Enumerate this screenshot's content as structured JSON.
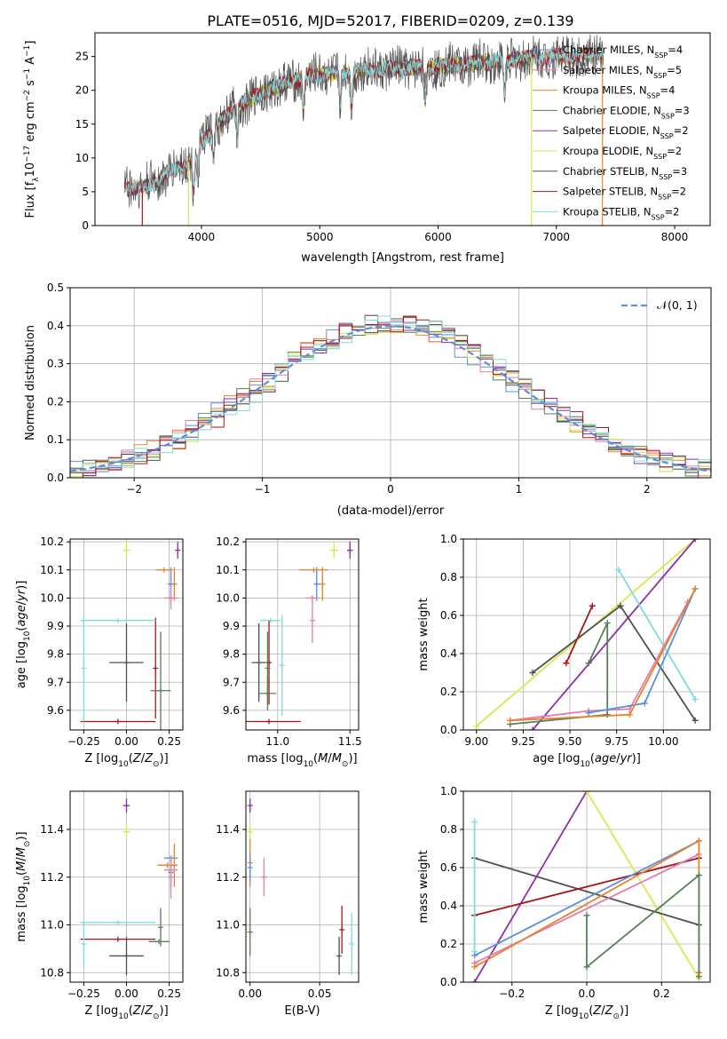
{
  "page": {
    "title": "PLATE=0516, MJD=52017, FIBERID=0209, z=0.139"
  },
  "colors": {
    "Chabrier MILES": "#5b8fd9",
    "Salpeter MILES": "#e47bb2",
    "Kroupa MILES": "#e8822c",
    "Chabrier ELODIE": "#558055",
    "Salpeter ELODIE": "#8e2fa8",
    "Kroupa ELODIE": "#d6e84f",
    "Chabrier STELIB": "#505050",
    "Salpeter STELIB": "#aa1418",
    "Kroupa STELIB": "#7fdcdc",
    "normal": "#5b8fd9"
  },
  "chart_data": [
    {
      "id": "spectrum",
      "type": "line",
      "xlabel": "wavelength [Angstrom, rest frame]",
      "ylabel": "Flux [f_λ 10^-17 erg cm^-2 s^-1 A^-1]",
      "ylabel_main": "Flux [f",
      "ylabel_sub": "λ",
      "ylabel_rest": "10",
      "ylabel_exp1": "−17",
      "ylabel_mid": " erg cm",
      "ylabel_exp2": "−2",
      "ylabel_mid2": " s",
      "ylabel_exp3": "−1",
      "ylabel_end": " A",
      "ylabel_exp4": "−1",
      "ylabel_close": "]",
      "xlim": [
        3100,
        8300
      ],
      "ylim": [
        0,
        28.5
      ],
      "xticks": [
        4000,
        5000,
        6000,
        7000,
        8000
      ],
      "yticks": [
        0,
        5,
        10,
        15,
        20,
        25
      ],
      "continuum": [
        [
          3350,
          6
        ],
        [
          3500,
          5.5
        ],
        [
          3700,
          7.5
        ],
        [
          3900,
          9.5
        ],
        [
          4000,
          12
        ],
        [
          4100,
          14.5
        ],
        [
          4300,
          17.5
        ],
        [
          4500,
          19.5
        ],
        [
          4700,
          21
        ],
        [
          4900,
          22
        ],
        [
          5100,
          22.5
        ],
        [
          5400,
          23
        ],
        [
          5800,
          23.3
        ],
        [
          6200,
          23.8
        ],
        [
          6600,
          24.5
        ],
        [
          7000,
          25
        ],
        [
          7400,
          25.2
        ]
      ],
      "absorption_lines": [
        3934,
        3969,
        4102,
        4304,
        4861,
        5175,
        5270,
        5892,
        6563
      ],
      "series": [
        {
          "name": "Chabrier MILES",
          "nssp": "4",
          "range": [
            3350,
            7400
          ]
        },
        {
          "name": "Salpeter MILES",
          "nssp": "5",
          "range": [
            3350,
            7400
          ]
        },
        {
          "name": "Kroupa MILES",
          "nssp": "4",
          "range": [
            3350,
            7400
          ]
        },
        {
          "name": "Chabrier ELODIE",
          "nssp": "3",
          "range": [
            4000,
            6800
          ]
        },
        {
          "name": "Salpeter ELODIE",
          "nssp": "2",
          "range": [
            4000,
            6800
          ]
        },
        {
          "name": "Kroupa ELODIE",
          "nssp": "2",
          "range": [
            4000,
            6800
          ]
        },
        {
          "name": "Chabrier STELIB",
          "nssp": "3",
          "range": [
            3350,
            7400
          ]
        },
        {
          "name": "Salpeter STELIB",
          "nssp": "2",
          "range": [
            3350,
            7400
          ]
        },
        {
          "name": "Kroupa STELIB",
          "nssp": "2",
          "range": [
            3350,
            7400
          ]
        }
      ],
      "drop_lines": [
        {
          "series": "Salpeter STELIB",
          "x": 3500
        },
        {
          "series": "Kroupa ELODIE",
          "x": 3890
        },
        {
          "series": "Kroupa ELODIE",
          "x": 6790
        },
        {
          "series": "Kroupa MILES",
          "x": 7390
        }
      ],
      "legend_position": "upper right"
    },
    {
      "id": "residuals",
      "type": "line",
      "xlabel": "(data-model)/error",
      "ylabel": "Normed distribution",
      "xlim": [
        -2.5,
        2.5
      ],
      "ylim": [
        0,
        0.5
      ],
      "xticks": [
        -2,
        -1,
        0,
        1,
        2
      ],
      "yticks": [
        0.0,
        0.1,
        0.2,
        0.3,
        0.4,
        0.5
      ],
      "grid": true,
      "histogram_step": 0.1,
      "legend": "𝒩(0, 1)",
      "legend_position": "upper right"
    },
    {
      "id": "age-Z",
      "type": "scatter",
      "xlabel": "Z [log10(Z/Z⊙)]",
      "ylabel": "age [log10(age/yr)]",
      "xlim": [
        -0.33,
        0.33
      ],
      "ylim": [
        9.53,
        10.21
      ],
      "xticks": [
        -0.25,
        0.0,
        0.25
      ],
      "yticks": [
        9.6,
        9.7,
        9.8,
        9.9,
        10.0,
        10.1,
        10.2
      ],
      "grid": true,
      "points": [
        {
          "series": "Chabrier STELIB",
          "x": 0.0,
          "xerr": 0.1,
          "y": 9.77,
          "yerr": 0.14
        },
        {
          "series": "Salpeter STELIB",
          "x": -0.05,
          "xerr": 0.22,
          "y": 9.56,
          "yerr": 0.0
        },
        {
          "series": "Salpeter STELIB",
          "x": 0.17,
          "xerr": 0.0,
          "y": 9.75,
          "yerr": 0.18
        },
        {
          "series": "Kroupa STELIB",
          "x": -0.25,
          "xerr": 0.0,
          "y": 9.75,
          "yerr": 0.19
        },
        {
          "series": "Kroupa STELIB",
          "x": -0.05,
          "xerr": 0.22,
          "y": 9.92,
          "yerr": 0.0
        },
        {
          "series": "Chabrier ELODIE",
          "x": 0.2,
          "xerr": 0.06,
          "y": 9.67,
          "yerr": 0.21
        },
        {
          "series": "Kroupa ELODIE",
          "x": 0.0,
          "xerr": 0.02,
          "y": 10.17,
          "yerr": 0.03
        },
        {
          "series": "Salpeter ELODIE",
          "x": 0.3,
          "xerr": 0.0,
          "y": 10.17,
          "yerr": 0.03
        },
        {
          "series": "Chabrier MILES",
          "x": 0.26,
          "xerr": 0.02,
          "y": 10.05,
          "yerr": 0.06
        },
        {
          "series": "Kroupa MILES",
          "x": 0.22,
          "xerr": 0.05,
          "y": 10.1,
          "yerr": 0.0
        },
        {
          "series": "Kroupa MILES",
          "x": 0.28,
          "xerr": 0.0,
          "y": 10.05,
          "yerr": 0.06
        },
        {
          "series": "Salpeter MILES",
          "x": 0.26,
          "xerr": 0.04,
          "y": 10.0,
          "yerr": 0.04
        }
      ]
    },
    {
      "id": "age-mass",
      "type": "scatter",
      "xlabel": "mass [log10(M/M⊙)]",
      "ylabel": "",
      "xlim": [
        10.78,
        11.56
      ],
      "ylim": [
        9.53,
        10.21
      ],
      "xticks": [
        11.0,
        11.5
      ],
      "yticks": [
        9.6,
        9.7,
        9.8,
        9.9,
        10.0,
        10.1,
        10.2
      ],
      "grid": true,
      "points": [
        {
          "series": "Chabrier STELIB",
          "x": 10.87,
          "xerr": 0.05,
          "y": 9.77,
          "yerr": 0.14
        },
        {
          "series": "Salpeter STELIB",
          "x": 10.94,
          "xerr": 0.22,
          "y": 9.56,
          "yerr": 0.0
        },
        {
          "series": "Salpeter STELIB",
          "x": 10.94,
          "xerr": 0.0,
          "y": 9.77,
          "yerr": 0.15
        },
        {
          "series": "Kroupa STELIB",
          "x": 10.95,
          "xerr": 0.07,
          "y": 9.92,
          "yerr": 0.0
        },
        {
          "series": "Kroupa STELIB",
          "x": 11.03,
          "xerr": 0.0,
          "y": 9.76,
          "yerr": 0.18
        },
        {
          "series": "Chabrier ELODIE",
          "x": 10.93,
          "xerr": 0.06,
          "y": 9.66,
          "yerr": 0.06
        },
        {
          "series": "Chabrier ELODIE",
          "x": 10.93,
          "xerr": 0.0,
          "y": 9.75,
          "yerr": 0.13
        },
        {
          "series": "Kroupa ELODIE",
          "x": 11.39,
          "xerr": 0.03,
          "y": 10.17,
          "yerr": 0.03
        },
        {
          "series": "Salpeter ELODIE",
          "x": 11.5,
          "xerr": 0.02,
          "y": 10.17,
          "yerr": 0.03
        },
        {
          "series": "Chabrier MILES",
          "x": 11.27,
          "xerr": 0.02,
          "y": 10.05,
          "yerr": 0.06
        },
        {
          "series": "Kroupa MILES",
          "x": 11.25,
          "xerr": 0.1,
          "y": 10.1,
          "yerr": 0.0
        },
        {
          "series": "Kroupa MILES",
          "x": 11.31,
          "xerr": 0.0,
          "y": 10.05,
          "yerr": 0.06
        },
        {
          "series": "Salpeter MILES",
          "x": 11.24,
          "xerr": 0.05,
          "y": 10.0,
          "yerr": 0.0
        },
        {
          "series": "Salpeter MILES",
          "x": 11.24,
          "xerr": 0.0,
          "y": 9.92,
          "yerr": 0.08
        }
      ]
    },
    {
      "id": "mass-weight-age",
      "type": "line",
      "xlabel": "age [log10(age/yr)]",
      "ylabel": "mass weight",
      "xlim": [
        8.93,
        10.25
      ],
      "ylim": [
        0,
        1
      ],
      "xticks": [
        9.0,
        9.25,
        9.5,
        9.75,
        10.0
      ],
      "yticks": [
        0.0,
        0.2,
        0.4,
        0.6,
        0.8,
        1.0
      ],
      "grid": true,
      "series": [
        {
          "name": "Kroupa ELODIE",
          "points": [
            [
              9.0,
              0.02
            ],
            [
              10.17,
              1.0
            ]
          ]
        },
        {
          "name": "Salpeter ELODIE",
          "points": [
            [
              9.3,
              0.0
            ],
            [
              10.17,
              1.0
            ]
          ]
        },
        {
          "name": "Salpeter STELIB",
          "points": [
            [
              9.48,
              0.35
            ],
            [
              9.62,
              0.65
            ]
          ]
        },
        {
          "name": "Chabrier STELIB",
          "points": [
            [
              9.3,
              0.3
            ],
            [
              9.77,
              0.65
            ],
            [
              10.17,
              0.05
            ]
          ]
        },
        {
          "name": "Chabrier ELODIE",
          "points": [
            [
              9.18,
              0.03
            ],
            [
              9.7,
              0.08
            ],
            [
              9.7,
              0.56
            ],
            [
              9.6,
              0.35
            ]
          ]
        },
        {
          "name": "Kroupa STELIB",
          "points": [
            [
              9.76,
              0.84
            ],
            [
              10.17,
              0.16
            ]
          ]
        },
        {
          "name": "Salpeter MILES",
          "points": [
            [
              9.18,
              0.05
            ],
            [
              9.6,
              0.1
            ],
            [
              9.82,
              0.11
            ],
            [
              10.13,
              0.67
            ]
          ]
        },
        {
          "name": "Chabrier MILES",
          "points": [
            [
              9.6,
              0.09
            ],
            [
              9.9,
              0.14
            ],
            [
              10.17,
              0.74
            ]
          ]
        },
        {
          "name": "Kroupa MILES",
          "points": [
            [
              9.18,
              0.05
            ],
            [
              9.82,
              0.08
            ],
            [
              10.17,
              0.74
            ]
          ]
        }
      ]
    },
    {
      "id": "mass-Z",
      "type": "scatter",
      "xlabel": "Z [log10(Z/Z⊙)]",
      "ylabel": "mass [log10(M/M⊙)]",
      "xlim": [
        -0.33,
        0.33
      ],
      "ylim": [
        10.76,
        11.56
      ],
      "xticks": [
        -0.25,
        0.0,
        0.25
      ],
      "yticks": [
        10.8,
        11.0,
        11.2,
        11.4
      ],
      "grid": true,
      "points": [
        {
          "series": "Chabrier STELIB",
          "x": 0.0,
          "xerr": 0.1,
          "y": 10.87,
          "yerr": 0.08
        },
        {
          "series": "Salpeter STELIB",
          "x": -0.05,
          "xerr": 0.22,
          "y": 10.94,
          "yerr": 0.0
        },
        {
          "series": "Kroupa STELIB",
          "x": -0.25,
          "xerr": 0.0,
          "y": 10.92,
          "yerr": 0.1
        },
        {
          "series": "Kroupa STELIB",
          "x": -0.05,
          "xerr": 0.22,
          "y": 11.01,
          "yerr": 0.0
        },
        {
          "series": "Chabrier ELODIE",
          "x": 0.19,
          "xerr": 0.06,
          "y": 10.93,
          "yerr": 0.0
        },
        {
          "series": "Chabrier ELODIE",
          "x": 0.2,
          "xerr": 0.0,
          "y": 10.99,
          "yerr": 0.08
        },
        {
          "series": "Kroupa ELODIE",
          "x": 0.0,
          "xerr": 0.02,
          "y": 11.39,
          "yerr": 0.03
        },
        {
          "series": "Salpeter ELODIE",
          "x": 0.0,
          "xerr": 0.02,
          "y": 11.5,
          "yerr": 0.03
        },
        {
          "series": "Chabrier MILES",
          "x": 0.26,
          "xerr": 0.04,
          "y": 11.28,
          "yerr": 0.0
        },
        {
          "series": "Chabrier MILES",
          "x": 0.26,
          "xerr": 0.0,
          "y": 11.22,
          "yerr": 0.06
        },
        {
          "series": "Kroupa MILES",
          "x": 0.24,
          "xerr": 0.06,
          "y": 11.25,
          "yerr": 0.0
        },
        {
          "series": "Kroupa MILES",
          "x": 0.28,
          "xerr": 0.0,
          "y": 11.25,
          "yerr": 0.09
        },
        {
          "series": "Salpeter MILES",
          "x": 0.26,
          "xerr": 0.04,
          "y": 11.23,
          "yerr": 0.0
        },
        {
          "series": "Salpeter MILES",
          "x": 0.26,
          "xerr": 0.0,
          "y": 11.2,
          "yerr": 0.09
        }
      ]
    },
    {
      "id": "mass-ebv",
      "type": "scatter",
      "xlabel": "E(B-V)",
      "ylabel": "",
      "xlim": [
        -0.003,
        0.078
      ],
      "ylim": [
        10.76,
        11.56
      ],
      "xticks": [
        0.0,
        0.05
      ],
      "yticks": [
        10.8,
        11.0,
        11.2,
        11.4
      ],
      "grid": true,
      "points": [
        {
          "series": "Chabrier STELIB",
          "x": 0.064,
          "xerr": 0.0,
          "y": 10.87,
          "yerr": 0.08
        },
        {
          "series": "Salpeter STELIB",
          "x": 0.066,
          "xerr": 0.0,
          "y": 10.98,
          "yerr": 0.1
        },
        {
          "series": "Kroupa STELIB",
          "x": 0.073,
          "xerr": 0.0,
          "y": 10.92,
          "yerr": 0.13
        },
        {
          "series": "Chabrier ELODIE",
          "x": 0.0,
          "xerr": 0.0,
          "y": 10.97,
          "yerr": 0.1
        },
        {
          "series": "Kroupa ELODIE",
          "x": 0.0,
          "xerr": 0.0,
          "y": 11.39,
          "yerr": 0.03
        },
        {
          "series": "Salpeter ELODIE",
          "x": 0.0,
          "xerr": 0.0,
          "y": 11.5,
          "yerr": 0.03
        },
        {
          "series": "Kroupa MILES",
          "x": 0.0,
          "xerr": 0.0,
          "y": 11.26,
          "yerr": 0.1
        },
        {
          "series": "Chabrier MILES",
          "x": 0.0,
          "xerr": 0.0,
          "y": 11.24,
          "yerr": 0.06
        },
        {
          "series": "Salpeter MILES",
          "x": 0.01,
          "xerr": 0.0,
          "y": 11.2,
          "yerr": 0.08
        }
      ]
    },
    {
      "id": "mass-weight-Z",
      "type": "line",
      "xlabel": "Z [log10(Z/Z⊙)]",
      "ylabel": "mass weight",
      "xlim": [
        -0.33,
        0.33
      ],
      "ylim": [
        0,
        1
      ],
      "xticks": [
        -0.2,
        0.0,
        0.2
      ],
      "yticks": [
        0.0,
        0.2,
        0.4,
        0.6,
        0.8,
        1.0
      ],
      "grid": true,
      "series": [
        {
          "name": "Salpeter ELODIE",
          "points": [
            [
              -0.3,
              0.0
            ],
            [
              0.0,
              1.0
            ]
          ]
        },
        {
          "name": "Kroupa ELODIE",
          "points": [
            [
              0.0,
              1.0
            ],
            [
              0.3,
              0.02
            ]
          ]
        },
        {
          "name": "Chabrier STELIB",
          "points": [
            [
              -0.3,
              0.65
            ],
            [
              0.3,
              0.3
            ]
          ]
        },
        {
          "name": "Salpeter STELIB",
          "points": [
            [
              -0.3,
              0.35
            ],
            [
              0.3,
              0.65
            ]
          ]
        },
        {
          "name": "Kroupa STELIB",
          "points": [
            [
              -0.3,
              0.84
            ],
            [
              -0.3,
              0.16
            ]
          ]
        },
        {
          "name": "Chabrier MILES",
          "points": [
            [
              -0.3,
              0.14
            ],
            [
              0.3,
              0.74
            ]
          ]
        },
        {
          "name": "Salpeter MILES",
          "points": [
            [
              -0.3,
              0.1
            ],
            [
              0.3,
              0.67
            ]
          ]
        },
        {
          "name": "Kroupa MILES",
          "points": [
            [
              -0.3,
              0.08
            ],
            [
              0.3,
              0.74
            ],
            [
              0.3,
              0.05
            ]
          ]
        },
        {
          "name": "Chabrier ELODIE",
          "points": [
            [
              0.0,
              0.35
            ],
            [
              0.0,
              0.08
            ],
            [
              0.3,
              0.56
            ],
            [
              0.3,
              0.03
            ]
          ]
        }
      ]
    }
  ]
}
